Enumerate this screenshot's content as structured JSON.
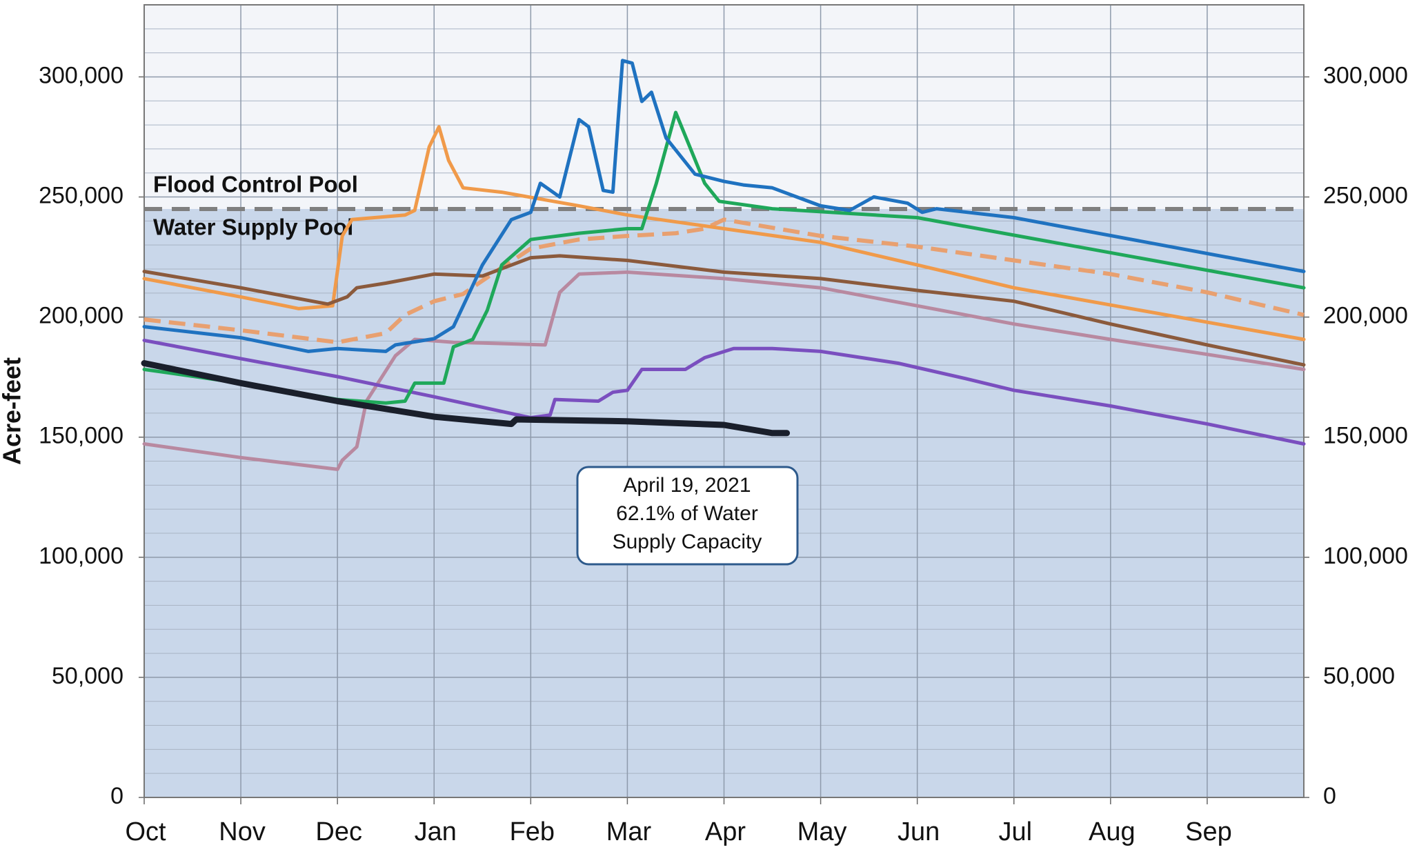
{
  "chart_data": {
    "type": "line",
    "ylabel": "Acre-feet",
    "xlim": [
      0,
      12
    ],
    "xticks": [
      {
        "value": 0,
        "label": "Oct"
      },
      {
        "value": 1,
        "label": "Nov"
      },
      {
        "value": 2,
        "label": "Dec"
      },
      {
        "value": 3,
        "label": "Jan"
      },
      {
        "value": 4,
        "label": "Feb"
      },
      {
        "value": 5,
        "label": "Mar"
      },
      {
        "value": 6,
        "label": "Apr"
      },
      {
        "value": 7,
        "label": "May"
      },
      {
        "value": 8,
        "label": "Jun"
      },
      {
        "value": 9,
        "label": "Jul"
      },
      {
        "value": 10,
        "label": "Aug"
      },
      {
        "value": 11,
        "label": "Sep"
      }
    ],
    "ylim": [
      0,
      330000
    ],
    "yticks": [
      0,
      {
        "value": 50000,
        "label": "50,000"
      },
      {
        "value": 100000,
        "label": "100,000"
      },
      {
        "value": 150000,
        "label": "150,000"
      },
      {
        "value": 200000,
        "label": "200,000"
      },
      {
        "value": 250000,
        "label": "250,000"
      },
      {
        "value": 300000,
        "label": "300,000"
      }
    ],
    "minor_yticks": [
      10000,
      20000,
      30000,
      40000,
      60000,
      70000,
      80000,
      90000,
      110000,
      120000,
      130000,
      140000,
      160000,
      170000,
      180000,
      190000,
      210000,
      220000,
      230000,
      240000,
      260000,
      270000,
      280000,
      290000,
      310000,
      320000
    ],
    "grid": true,
    "pool_level": 245000,
    "pool_labels": [
      "Flood Control Pool",
      "Water Supply Pool"
    ],
    "annotation": [
      "April 19, 2021",
      "62.1% of Water",
      "Supply Capacity"
    ],
    "series": [
      {
        "color": "#b889a0",
        "x": [
          0,
          1,
          2,
          2.05,
          2.2,
          2.3,
          2.6,
          2.8,
          3.2,
          3.5,
          4.15,
          4.3,
          4.5,
          5,
          6,
          7,
          8,
          9,
          10,
          12
        ],
        "values": [
          147200,
          141500,
          136600,
          140400,
          146000,
          165000,
          183900,
          190700,
          189500,
          189200,
          188400,
          210300,
          217900,
          218700,
          216000,
          212200,
          204700,
          197100,
          190700,
          178200
        ]
      },
      {
        "color": "#e8a070",
        "dash": true,
        "x": [
          0,
          1,
          2,
          2.5,
          2.7,
          3,
          3.3,
          3.6,
          4,
          4.5,
          5,
          5.5,
          5.8,
          6,
          7,
          8,
          9,
          10,
          11,
          12
        ],
        "values": [
          199000,
          194500,
          189500,
          193300,
          200900,
          206600,
          209600,
          217900,
          228500,
          232300,
          233800,
          234900,
          236800,
          240600,
          233800,
          229300,
          223600,
          217900,
          210300,
          200900
        ]
      },
      {
        "color": "#f09a4a",
        "x": [
          0,
          1,
          1.6,
          1.95,
          2.05,
          2.15,
          2.7,
          2.8,
          2.95,
          3.05,
          3.15,
          3.3,
          3.7,
          4.5,
          5,
          6,
          7,
          8,
          9,
          12
        ],
        "values": [
          216000,
          208400,
          203500,
          204700,
          233800,
          240600,
          242500,
          244400,
          270900,
          279200,
          265200,
          253800,
          252000,
          246300,
          242500,
          236800,
          231100,
          221700,
          212200,
          190700
        ]
      },
      {
        "color": "#8b5a3c",
        "x": [
          0,
          1,
          1.9,
          2.1,
          2.2,
          2.5,
          3,
          3.5,
          4,
          4.3,
          5,
          6,
          7,
          8,
          9,
          10,
          11,
          12
        ],
        "values": [
          219000,
          212200,
          205400,
          208400,
          212200,
          214100,
          217900,
          217100,
          224700,
          225500,
          223600,
          218700,
          216000,
          211100,
          206600,
          197100,
          188400,
          180100
        ]
      },
      {
        "color": "#7a4fbf",
        "x": [
          0,
          1,
          2,
          3,
          4,
          4.2,
          4.25,
          4.7,
          4.85,
          5,
          5.15,
          5.6,
          5.8,
          6.1,
          6.5,
          7,
          7.8,
          8.5,
          9,
          10,
          11,
          12
        ],
        "values": [
          190300,
          182700,
          175200,
          166800,
          158100,
          159200,
          165700,
          165000,
          168700,
          169500,
          178200,
          178200,
          183100,
          186900,
          186900,
          185700,
          180800,
          174400,
          169500,
          163000,
          155500,
          147200
        ]
      },
      {
        "color": "#1fa85a",
        "x": [
          0,
          1,
          2,
          2.5,
          2.7,
          2.8,
          3.1,
          3.2,
          3.4,
          3.55,
          3.7,
          4,
          4.5,
          5,
          5.15,
          5.3,
          5.5,
          5.8,
          5.95,
          6.5,
          8,
          12
        ],
        "values": [
          178200,
          172500,
          165700,
          164200,
          165000,
          172500,
          172500,
          187600,
          190700,
          202800,
          221700,
          232300,
          234900,
          236800,
          236800,
          255700,
          285200,
          255700,
          248200,
          245100,
          241400,
          212200
        ]
      },
      {
        "color": "#1f72c0",
        "x": [
          0,
          1,
          1.7,
          2,
          2.5,
          2.6,
          3,
          3.2,
          3.5,
          3.8,
          4,
          4.1,
          4.3,
          4.5,
          4.6,
          4.75,
          4.85,
          4.95,
          5.05,
          5.15,
          5.25,
          5.4,
          5.7,
          6,
          6.2,
          6.5,
          7,
          7.3,
          7.55,
          7.9,
          8.05,
          8.2,
          9,
          12
        ],
        "values": [
          196000,
          191400,
          185700,
          186900,
          185700,
          188400,
          191000,
          196000,
          221700,
          240600,
          243600,
          255700,
          250000,
          282200,
          279200,
          252700,
          252000,
          306800,
          305700,
          289800,
          293600,
          274600,
          259500,
          256500,
          255000,
          253800,
          246300,
          244400,
          250000,
          247400,
          243600,
          245100,
          241400,
          219000
        ]
      },
      {
        "color": "#1a1f2b",
        "width": 9,
        "x": [
          0,
          1,
          2,
          3,
          3.8,
          3.85,
          5,
          6,
          6.5,
          6.65
        ],
        "values": [
          180800,
          172500,
          165000,
          158500,
          155500,
          157400,
          156600,
          155100,
          151700,
          151700
        ]
      }
    ]
  }
}
